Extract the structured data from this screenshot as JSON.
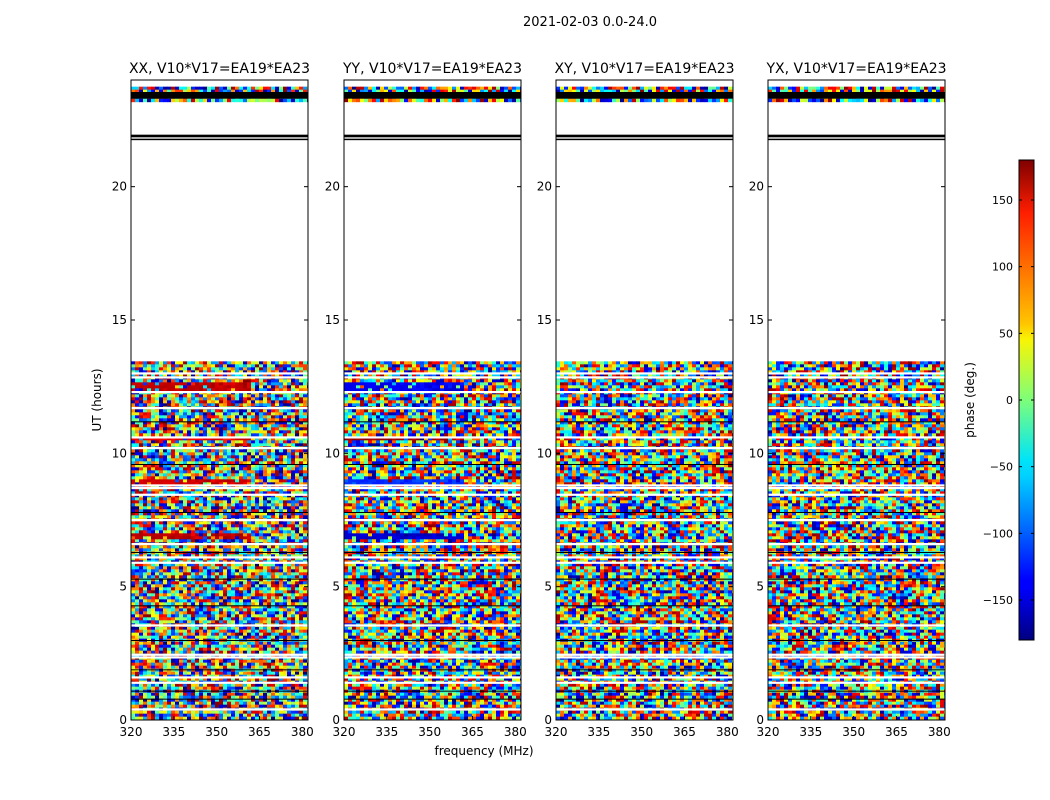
{
  "chart_data": {
    "type": "heatmap",
    "title": "2021-02-03 0.0-24.0",
    "ylabel": "UT (hours)",
    "xlabel": "frequency (MHz)",
    "xlim": [
      320,
      382
    ],
    "ylim": [
      0,
      24
    ],
    "xticks": [
      320,
      335,
      350,
      365,
      380
    ],
    "xtick_labels": [
      "320",
      "335",
      "350",
      "365",
      "380"
    ],
    "yticks": [
      0,
      5,
      10,
      15,
      20
    ],
    "ytick_labels": [
      "0",
      "5",
      "10",
      "15",
      "20"
    ],
    "panels": [
      {
        "title": "XX, V10*V17=EA19*EA23",
        "coherent": [
          [
            6.85,
            7.05,
            160
          ],
          [
            12.4,
            12.7,
            155
          ],
          [
            10.5,
            10.7,
            140
          ],
          [
            8.9,
            9.1,
            150
          ]
        ]
      },
      {
        "title": "YY, V10*V17=EA19*EA23",
        "coherent": [
          [
            6.85,
            7.05,
            -150
          ],
          [
            12.4,
            12.7,
            -140
          ],
          [
            10.5,
            10.7,
            170
          ],
          [
            8.9,
            9.1,
            -120
          ]
        ]
      },
      {
        "title": "XY, V10*V17=EA19*EA23",
        "coherent": []
      },
      {
        "title": "YX, V10*V17=EA19*EA23",
        "coherent": []
      }
    ],
    "data_segments_hours": [
      [
        0.0,
        3.5
      ],
      [
        3.6,
        10.6
      ],
      [
        10.7,
        13.45
      ],
      [
        23.2,
        23.75
      ]
    ],
    "flagged_black_bands_hours": [
      [
        23.3,
        23.55
      ],
      [
        21.85,
        21.95
      ],
      [
        21.75,
        21.8
      ]
    ],
    "white_gap_lines_hours": [
      0.4,
      1.4,
      1.6,
      2.35,
      2.45,
      3.55,
      5.9,
      6.1,
      6.6,
      7.5,
      8.45,
      8.7,
      8.8,
      10.2,
      10.6,
      11.7,
      12.3,
      12.85,
      13.0
    ],
    "colorbar": {
      "label": "phase (deg.)",
      "range": [
        -180,
        180
      ],
      "ticks": [
        150,
        100,
        50,
        0,
        -50,
        -100,
        -150
      ],
      "tick_labels": [
        "150",
        "100",
        "50",
        "0",
        "−50",
        "−100",
        "−150"
      ],
      "colormap": "jet"
    }
  }
}
